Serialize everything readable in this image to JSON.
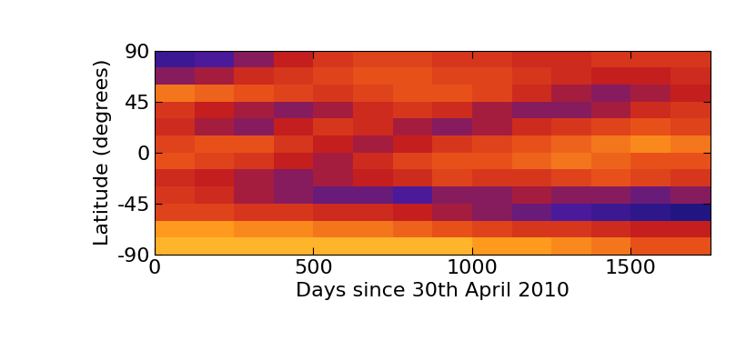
{
  "chart_data": {
    "type": "heatmap",
    "x_label": "Days since 30th April 2010",
    "y_label": "Latitude (degrees)",
    "xlim": [
      0,
      1750
    ],
    "xticks": [
      0,
      500,
      1000,
      1500
    ],
    "ylim": [
      -90,
      90
    ],
    "yticks": [
      -90,
      -45,
      0,
      45,
      90
    ],
    "x": [
      0,
      125,
      250,
      375,
      500,
      625,
      750,
      875,
      1000,
      1125,
      1250,
      1375,
      1500,
      1625,
      1750
    ],
    "y": [
      -90,
      -75,
      -60,
      -45,
      -30,
      -15,
      0,
      15,
      30,
      45,
      60,
      75,
      90
    ],
    "color_range": [
      0,
      1
    ],
    "cells": [
      [
        0.85,
        0.85,
        0.85,
        0.85,
        0.85,
        0.85,
        0.85,
        0.85,
        0.8,
        0.8,
        0.75,
        0.7,
        0.6,
        0.6
      ],
      [
        0.8,
        0.8,
        0.75,
        0.75,
        0.7,
        0.7,
        0.65,
        0.6,
        0.55,
        0.5,
        0.5,
        0.45,
        0.4,
        0.4
      ],
      [
        0.55,
        0.55,
        0.5,
        0.5,
        0.45,
        0.45,
        0.4,
        0.35,
        0.3,
        0.25,
        0.2,
        0.15,
        0.1,
        0.05
      ],
      [
        0.5,
        0.45,
        0.35,
        0.3,
        0.25,
        0.25,
        0.2,
        0.3,
        0.3,
        0.35,
        0.3,
        0.3,
        0.25,
        0.3
      ],
      [
        0.45,
        0.4,
        0.35,
        0.3,
        0.35,
        0.4,
        0.45,
        0.55,
        0.5,
        0.5,
        0.55,
        0.6,
        0.55,
        0.5
      ],
      [
        0.6,
        0.55,
        0.5,
        0.4,
        0.35,
        0.45,
        0.55,
        0.6,
        0.6,
        0.65,
        0.7,
        0.65,
        0.6,
        0.6
      ],
      [
        0.55,
        0.6,
        0.6,
        0.5,
        0.4,
        0.35,
        0.4,
        0.5,
        0.55,
        0.6,
        0.65,
        0.7,
        0.75,
        0.7
      ],
      [
        0.45,
        0.35,
        0.3,
        0.4,
        0.5,
        0.45,
        0.35,
        0.3,
        0.35,
        0.45,
        0.5,
        0.55,
        0.6,
        0.55
      ],
      [
        0.5,
        0.4,
        0.35,
        0.3,
        0.35,
        0.45,
        0.5,
        0.45,
        0.35,
        0.3,
        0.3,
        0.35,
        0.45,
        0.5
      ],
      [
        0.7,
        0.65,
        0.6,
        0.55,
        0.5,
        0.55,
        0.6,
        0.6,
        0.55,
        0.45,
        0.35,
        0.3,
        0.35,
        0.4
      ],
      [
        0.3,
        0.35,
        0.45,
        0.5,
        0.55,
        0.6,
        0.6,
        0.55,
        0.55,
        0.5,
        0.45,
        0.4,
        0.4,
        0.45
      ],
      [
        0.15,
        0.2,
        0.3,
        0.4,
        0.5,
        0.55,
        0.55,
        0.5,
        0.5,
        0.45,
        0.45,
        0.5,
        0.5,
        0.5
      ]
    ]
  }
}
